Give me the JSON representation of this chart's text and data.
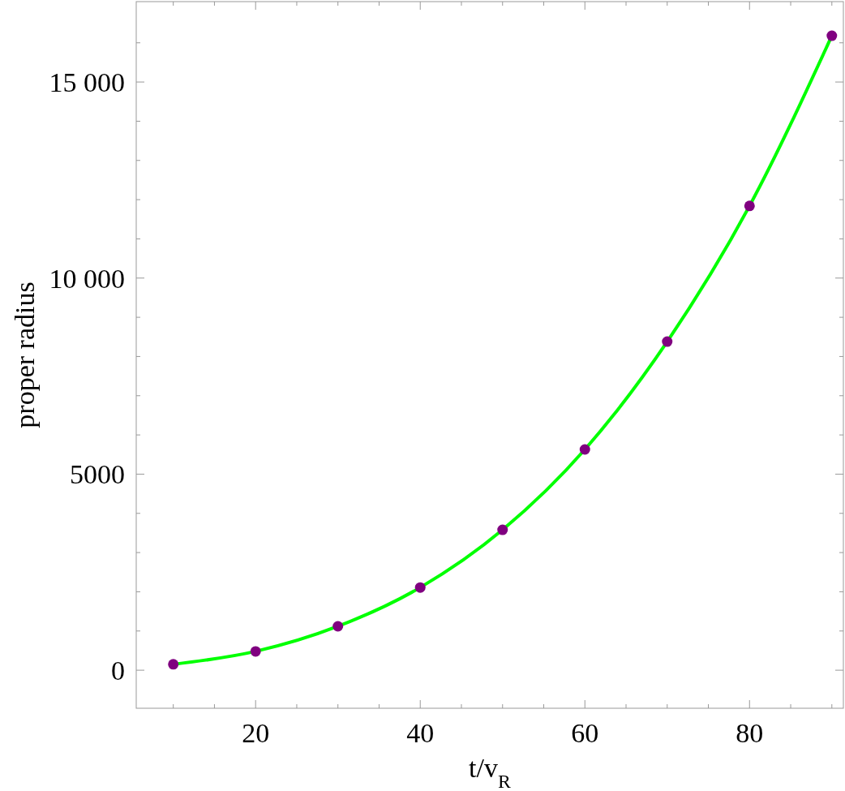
{
  "chart_data": {
    "type": "line",
    "xlabel": "t/v$_{R}$",
    "ylabel": "proper radius",
    "xlim": [
      5.5,
      91.4
    ],
    "ylim": [
      -970,
      17050
    ],
    "xticks": [
      {
        "value": 10,
        "label": null
      },
      {
        "value": 15,
        "label": null
      },
      20,
      {
        "value": 25,
        "label": null
      },
      {
        "value": 30,
        "label": null
      },
      {
        "value": 35,
        "label": null
      },
      40,
      {
        "value": 45,
        "label": null
      },
      {
        "value": 50,
        "label": null
      },
      {
        "value": 55,
        "label": null
      },
      60,
      {
        "value": 65,
        "label": null
      },
      {
        "value": 70,
        "label": null
      },
      {
        "value": 75,
        "label": null
      },
      80,
      {
        "value": 85,
        "label": null
      },
      {
        "value": 90,
        "label": null
      }
    ],
    "yticks": [
      0,
      {
        "value": 1000,
        "label": null
      },
      {
        "value": 2000,
        "label": null
      },
      {
        "value": 3000,
        "label": null
      },
      {
        "value": 4000,
        "label": null
      },
      5000,
      {
        "value": 6000,
        "label": null
      },
      {
        "value": 7000,
        "label": null
      },
      {
        "value": 8000,
        "label": null
      },
      {
        "value": 9000,
        "label": null
      },
      {
        "value": 10000,
        "label": "10 000"
      },
      {
        "value": 11000,
        "label": null
      },
      {
        "value": 12000,
        "label": null
      },
      {
        "value": 13000,
        "label": null
      },
      {
        "value": 14000,
        "label": null
      },
      {
        "value": 15000,
        "label": "15 000"
      },
      {
        "value": 16000,
        "label": null
      }
    ],
    "grid": false,
    "series": [
      {
        "type": "line",
        "color": "#00ff00",
        "marker": "none",
        "x": [
          10,
          20,
          30,
          40,
          50,
          60,
          70,
          80,
          90
        ],
        "values": [
          150,
          480,
          1120,
          2110,
          3580,
          5630,
          8380,
          11840,
          16180
        ]
      },
      {
        "type": "scatter",
        "color": "#800080",
        "marker": "circle",
        "x": [
          10,
          20,
          30,
          40,
          50,
          60,
          70,
          80,
          90
        ],
        "values": [
          150,
          480,
          1120,
          2110,
          3580,
          5630,
          8380,
          11840,
          16180
        ]
      }
    ]
  }
}
